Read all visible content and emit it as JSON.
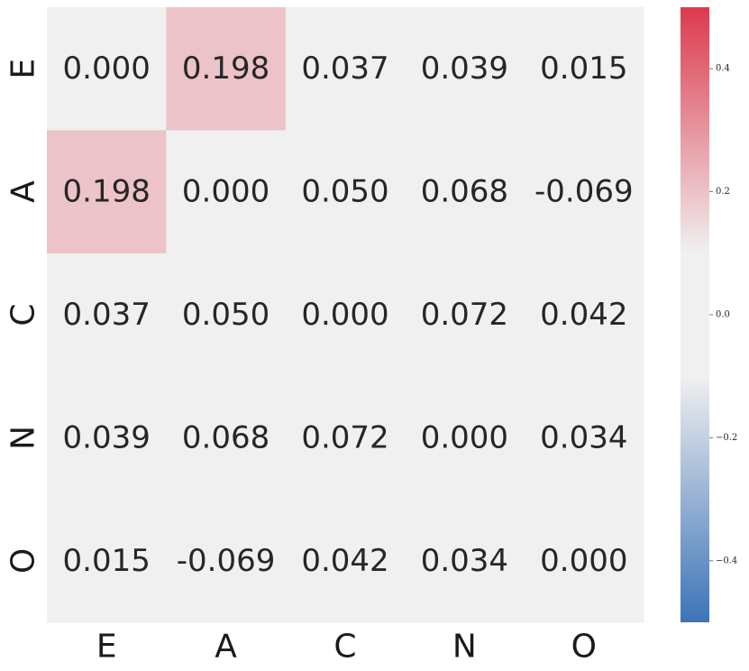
{
  "chart_data": {
    "type": "heatmap",
    "x_categories": [
      "E",
      "A",
      "C",
      "N",
      "O"
    ],
    "y_categories": [
      "E",
      "A",
      "C",
      "N",
      "O"
    ],
    "values": [
      [
        0.0,
        0.198,
        0.037,
        0.039,
        0.015
      ],
      [
        0.198,
        0.0,
        0.05,
        0.068,
        -0.069
      ],
      [
        0.037,
        0.05,
        0.0,
        0.072,
        0.042
      ],
      [
        0.039,
        0.068,
        0.072,
        0.0,
        0.034
      ],
      [
        0.015,
        -0.069,
        0.042,
        0.034,
        0.0
      ]
    ],
    "value_labels": [
      [
        "0.000",
        "0.198",
        "0.037",
        "0.039",
        "0.015"
      ],
      [
        "0.198",
        "0.000",
        "0.050",
        "0.068",
        "-0.069"
      ],
      [
        "0.037",
        "0.050",
        "0.000",
        "0.072",
        "0.042"
      ],
      [
        "0.039",
        "0.068",
        "0.072",
        "0.000",
        "0.034"
      ],
      [
        "0.015",
        "-0.069",
        "0.042",
        "0.034",
        "0.000"
      ]
    ],
    "colorbar": {
      "vmin": -0.5,
      "vmax": 0.5,
      "center_neutral_range": [
        -0.1,
        0.1
      ],
      "ticks": [
        0.4,
        0.2,
        0.0,
        -0.2,
        -0.4
      ],
      "tick_labels": [
        "0.4",
        "0.2",
        "0.0",
        "−0.2",
        "−0.4"
      ],
      "low_color": "#3d73b8",
      "mid_color": "#f0f0f0",
      "high_color": "#dc3a4d"
    },
    "title": "",
    "xlabel": "",
    "ylabel": ""
  }
}
